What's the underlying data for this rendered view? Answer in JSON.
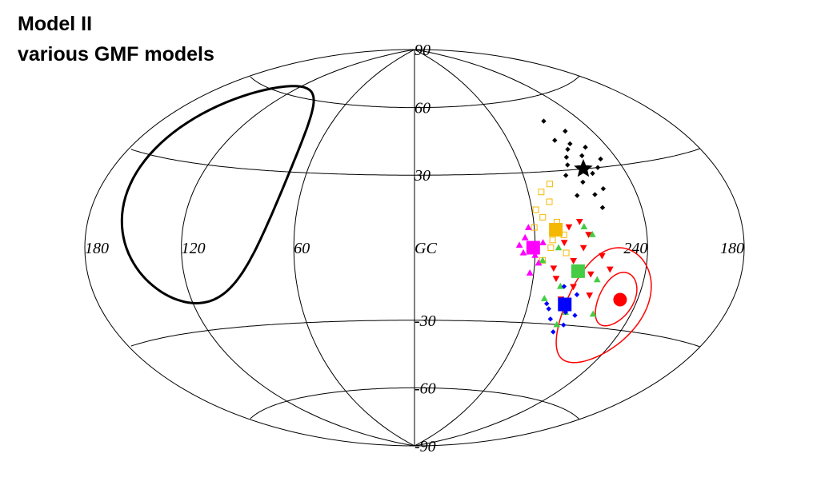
{
  "chart_data": {
    "type": "skymap",
    "projection": "hammer",
    "title": "Model II",
    "subtitle": "various GMF models",
    "xlim": [
      180,
      -180
    ],
    "ylim": [
      -90,
      90
    ],
    "xticks": [
      180,
      120,
      60,
      {
        "value": 0,
        "label": "GC"
      },
      240,
      {
        "value": -180,
        "label": "180"
      }
    ],
    "yticks": [
      90,
      60,
      30,
      -30,
      -60,
      -90
    ],
    "xgrid": [
      0,
      60,
      120,
      240,
      300
    ],
    "grid": true,
    "series": [
      {
        "color": "#000000",
        "marker": "diamond",
        "x": [
          258,
          262,
          266,
          270,
          255,
          260,
          268,
          272,
          264,
          250,
          276,
          262,
          258,
          270,
          266,
          254,
          274,
          260
        ],
        "values": [
          45,
          40,
          38,
          35,
          30,
          28,
          25,
          32,
          20,
          33,
          28,
          15,
          22,
          42,
          50,
          38,
          20,
          35
        ]
      },
      {
        "color": "#f5b800",
        "marker": "open-square",
        "x": [
          295,
          290,
          285,
          292,
          288,
          298,
          284,
          293,
          300,
          287,
          291,
          296
        ],
        "values": [
          12,
          18,
          5,
          0,
          10,
          15,
          -2,
          22,
          8,
          25,
          3,
          -5
        ]
      },
      {
        "color": "#ff00ff",
        "marker": "triangle-up",
        "x": [
          305,
          300,
          303,
          298,
          308,
          302,
          296,
          306
        ],
        "values": [
          4,
          -3,
          8,
          -6,
          1,
          -10,
          2,
          -2
        ]
      },
      {
        "color": "#ff0000",
        "marker": "triangle-down",
        "x": [
          280,
          275,
          270,
          285,
          290,
          278,
          265,
          272,
          283,
          288,
          268,
          276,
          260,
          282
        ],
        "values": [
          -5,
          0,
          -10,
          2,
          -8,
          -15,
          -3,
          5,
          -20,
          -12,
          -18,
          10,
          -8,
          8
        ]
      },
      {
        "color": "#44cc44",
        "marker": "triangle-up",
        "x": [
          285,
          278,
          270,
          292,
          266,
          274,
          288,
          262,
          280,
          296
        ],
        "values": [
          -15,
          -25,
          5,
          -20,
          -12,
          8,
          0,
          -25,
          -30,
          -5
        ]
      },
      {
        "color": "#0000ff",
        "marker": "diamond",
        "x": [
          282,
          278,
          285,
          275,
          288,
          276,
          283,
          272,
          280,
          290
        ],
        "values": [
          -20,
          -25,
          -28,
          -18,
          -24,
          -30,
          -15,
          -26,
          -33,
          -22
        ]
      }
    ],
    "centers": [
      {
        "x": 264,
        "y": 30,
        "color": "#000000",
        "marker": "star"
      },
      {
        "x": 289,
        "y": 7,
        "color": "#f5b800",
        "marker": "square"
      },
      {
        "x": 301,
        "y": 0,
        "color": "#ff00ff",
        "marker": "square"
      },
      {
        "x": 277,
        "y": -9,
        "color": "#44cc44",
        "marker": "square"
      },
      {
        "x": 280,
        "y": -22,
        "color": "#0000ff",
        "marker": "square"
      },
      {
        "x": 250,
        "y": -19,
        "color": "#ff0000",
        "marker": "circle"
      }
    ],
    "contours": [
      {
        "center": [
          116,
          22
        ],
        "radius": 42,
        "color": "#000000",
        "width": 3
      },
      {
        "center": [
          252,
          -19
        ],
        "radius": 10,
        "color": "#ff0000",
        "width": 1.5
      },
      {
        "center": [
          256,
          -22
        ],
        "radius": 22,
        "color": "#ff0000",
        "width": 1.5
      }
    ]
  }
}
